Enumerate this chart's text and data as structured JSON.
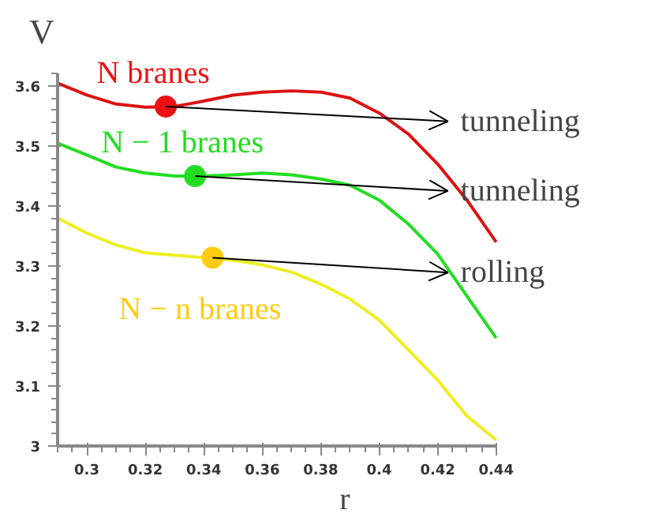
{
  "chart_data": {
    "type": "line",
    "xlabel": "r",
    "ylabel": "V",
    "xlim": [
      0.29,
      0.44
    ],
    "ylim": [
      3,
      3.62
    ],
    "xticks": [
      0.3,
      0.32,
      0.34,
      0.36,
      0.38,
      0.4,
      0.42,
      0.44
    ],
    "yticks": [
      3,
      3.1,
      3.2,
      3.3,
      3.4,
      3.5,
      3.6
    ],
    "grid": false,
    "x": [
      0.29,
      0.3,
      0.31,
      0.32,
      0.33,
      0.34,
      0.35,
      0.36,
      0.37,
      0.38,
      0.39,
      0.4,
      0.41,
      0.42,
      0.43,
      0.44
    ],
    "series": [
      {
        "color": "#dd1111",
        "values": [
          3.605,
          3.585,
          3.57,
          3.565,
          3.566,
          3.575,
          3.585,
          3.59,
          3.592,
          3.59,
          3.58,
          3.555,
          3.52,
          3.47,
          3.41,
          3.34
        ]
      },
      {
        "color": "#22dd22",
        "values": [
          3.505,
          3.485,
          3.465,
          3.455,
          3.45,
          3.45,
          3.452,
          3.455,
          3.452,
          3.445,
          3.435,
          3.41,
          3.37,
          3.32,
          3.25,
          3.18
        ]
      },
      {
        "color": "#eeee22",
        "values": [
          3.38,
          3.355,
          3.335,
          3.322,
          3.318,
          3.314,
          3.31,
          3.302,
          3.29,
          3.27,
          3.245,
          3.21,
          3.16,
          3.11,
          3.05,
          3.01
        ]
      },
      {
        "type": "scatter",
        "name": "N branes",
        "color": "#ee1111",
        "x": [
          0.327
        ],
        "values": [
          3.566
        ]
      },
      {
        "type": "scatter",
        "name": "N − 1 branes",
        "color": "#22dd22",
        "x": [
          0.337
        ],
        "values": [
          3.45
        ]
      },
      {
        "type": "scatter",
        "name": "N − n branes",
        "color": "#ffcc11",
        "x": [
          0.343
        ],
        "values": [
          3.314
        ]
      }
    ],
    "annotations": [
      "tunneling",
      "tunneling",
      "rolling"
    ]
  }
}
